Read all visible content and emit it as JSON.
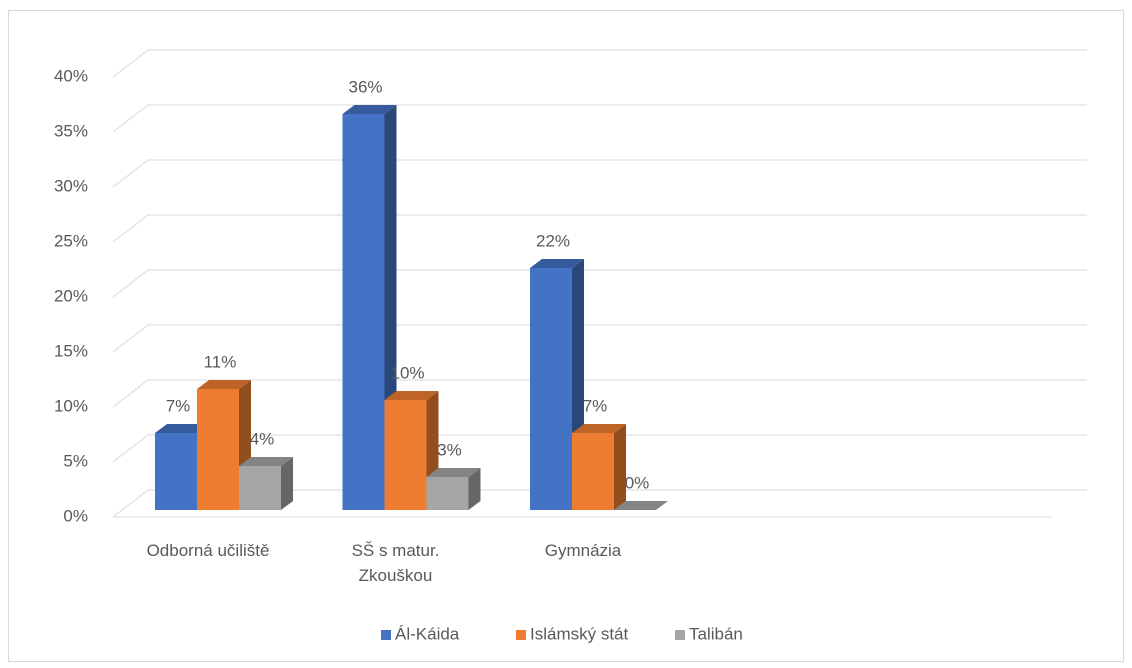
{
  "chart_data": {
    "type": "bar3d",
    "categories": [
      "Odborná učiliště",
      "SŠ s matur. Zkouškou",
      "Gymnázia"
    ],
    "series": [
      {
        "name": "Ál-Káida",
        "color": "#4472c4",
        "values": [
          7,
          36,
          22
        ],
        "value_labels": [
          "7%",
          "36%",
          "22%"
        ]
      },
      {
        "name": "Islámský stát",
        "color": "#ed7d31",
        "values": [
          11,
          10,
          7
        ],
        "value_labels": [
          "11%",
          "10%",
          "7%"
        ]
      },
      {
        "name": "Talibán",
        "color": "#a5a5a5",
        "values": [
          4,
          3,
          0
        ],
        "value_labels": [
          "4%",
          "3%",
          "0%"
        ]
      }
    ],
    "ylim": [
      0,
      40
    ],
    "yticks": [
      {
        "value": 0,
        "label": "0%"
      },
      {
        "value": 5,
        "label": "5%"
      },
      {
        "value": 10,
        "label": "10%"
      },
      {
        "value": 15,
        "label": "15%"
      },
      {
        "value": 20,
        "label": "20%"
      },
      {
        "value": 25,
        "label": "25%"
      },
      {
        "value": 30,
        "label": "30%"
      },
      {
        "value": 35,
        "label": "35%"
      },
      {
        "value": 40,
        "label": "40%"
      }
    ],
    "grid": true,
    "legend": "bottom"
  }
}
